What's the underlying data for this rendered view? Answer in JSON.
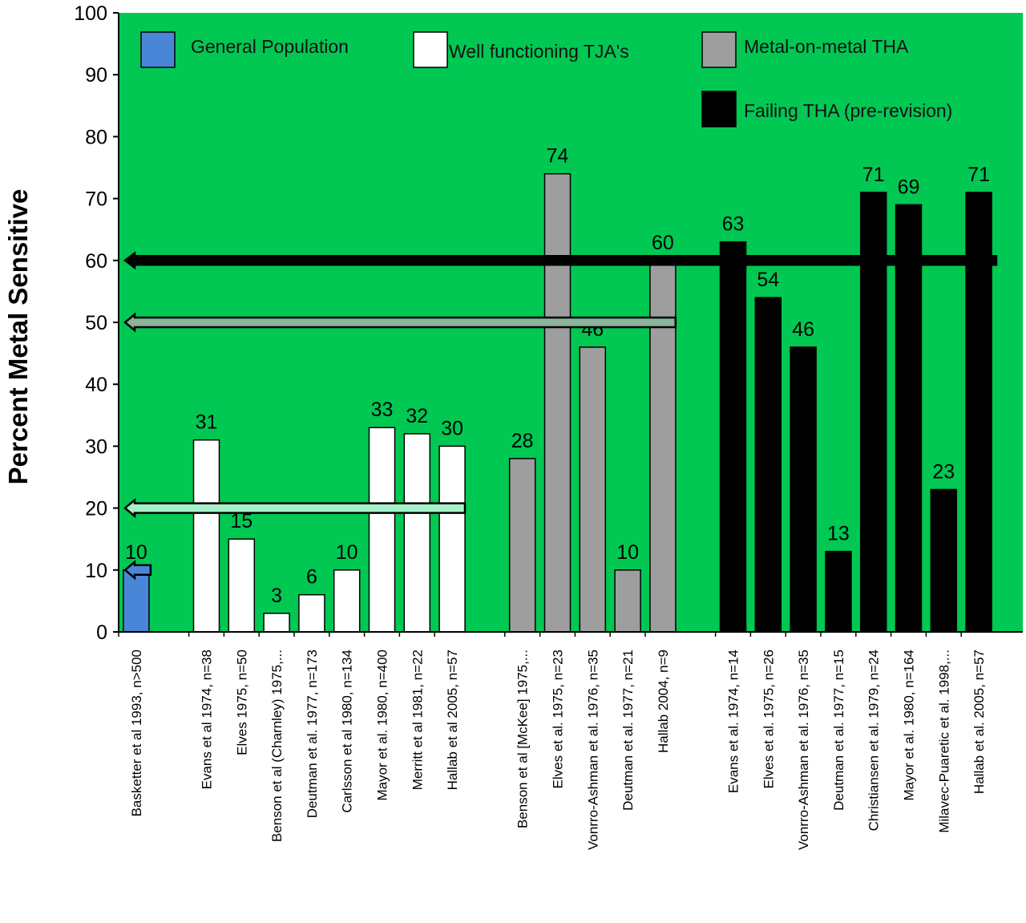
{
  "chart_data": {
    "type": "bar",
    "title": "",
    "xlabel": "",
    "ylabel": "Percent Metal Sensitive",
    "ylim": [
      0,
      100
    ],
    "yticks": [
      0,
      10,
      20,
      30,
      40,
      50,
      60,
      70,
      80,
      90,
      100
    ],
    "grid": false,
    "plot_background": "#00c853",
    "legend_placement": "top",
    "legend": [
      {
        "label": "General Population",
        "color": "#4a86d8"
      },
      {
        "label": "Well functioning TJA's",
        "color": "#ffffff"
      },
      {
        "label": "Metal-on-metal THA",
        "color": "#9e9e9e"
      },
      {
        "label": "Failing THA (pre-revision)",
        "color": "#000000"
      }
    ],
    "groups": [
      {
        "legend_index": 0,
        "color": "#4a86d8",
        "bars": [
          {
            "category": "Basketter et al 1993, n>500",
            "value": 10
          }
        ]
      },
      {
        "legend_index": 1,
        "color": "#ffffff",
        "bars": [
          {
            "category": "Evans et al 1974, n=38",
            "value": 31
          },
          {
            "category": "Elves 1975, n=50",
            "value": 15
          },
          {
            "category": "Benson et al (Charnley) 1975,...",
            "value": 3
          },
          {
            "category": "Deutman et al. 1977, n=173",
            "value": 6
          },
          {
            "category": "Carlsson et al 1980, n=134",
            "value": 10
          },
          {
            "category": "Mayor et al. 1980, n=400",
            "value": 33
          },
          {
            "category": "Merritt et al 1981, n=22",
            "value": 32
          },
          {
            "category": "Hallab et al 2005, n=57",
            "value": 30
          }
        ]
      },
      {
        "legend_index": 2,
        "color": "#9e9e9e",
        "bars": [
          {
            "category": "Benson et al [McKee] 1975,...",
            "value": 28
          },
          {
            "category": "Elves et al. 1975, n=23",
            "value": 74
          },
          {
            "category": "Vonrro-Ashman et al. 1976, n=35",
            "value": 46
          },
          {
            "category": "Deutman et al. 1977, n=21",
            "value": 10
          },
          {
            "category": "Hallab 2004, n=9",
            "value": 60
          }
        ]
      },
      {
        "legend_index": 3,
        "color": "#000000",
        "bars": [
          {
            "category": "Evans et al. 1974, n=14",
            "value": 63
          },
          {
            "category": "Elves et al. 1975, n=26",
            "value": 54
          },
          {
            "category": "Vonrro-Ashman et al. 1976, n=35",
            "value": 46
          },
          {
            "category": "Deutman et al. 1977, n=15",
            "value": 13
          },
          {
            "category": "Christiansen et al. 1979, n=24",
            "value": 71
          },
          {
            "category": "Mayor et al. 1980, n=164",
            "value": 69
          },
          {
            "category": "Milavec-Puaretic et al. 1998,...",
            "value": 23
          },
          {
            "category": "Hallab et al. 2005, n=57",
            "value": 71
          }
        ]
      }
    ],
    "reference_arrows": [
      {
        "group": "General Population",
        "value": 10,
        "color": "#4a86d8"
      },
      {
        "group": "Well functioning TJA's",
        "value": 20,
        "color": "#a5f0c8"
      },
      {
        "group": "Metal-on-metal THA",
        "value": 50,
        "color": "#8ab39a"
      },
      {
        "group": "Failing THA (pre-revision)",
        "value": 60,
        "color": "#000000"
      }
    ]
  }
}
